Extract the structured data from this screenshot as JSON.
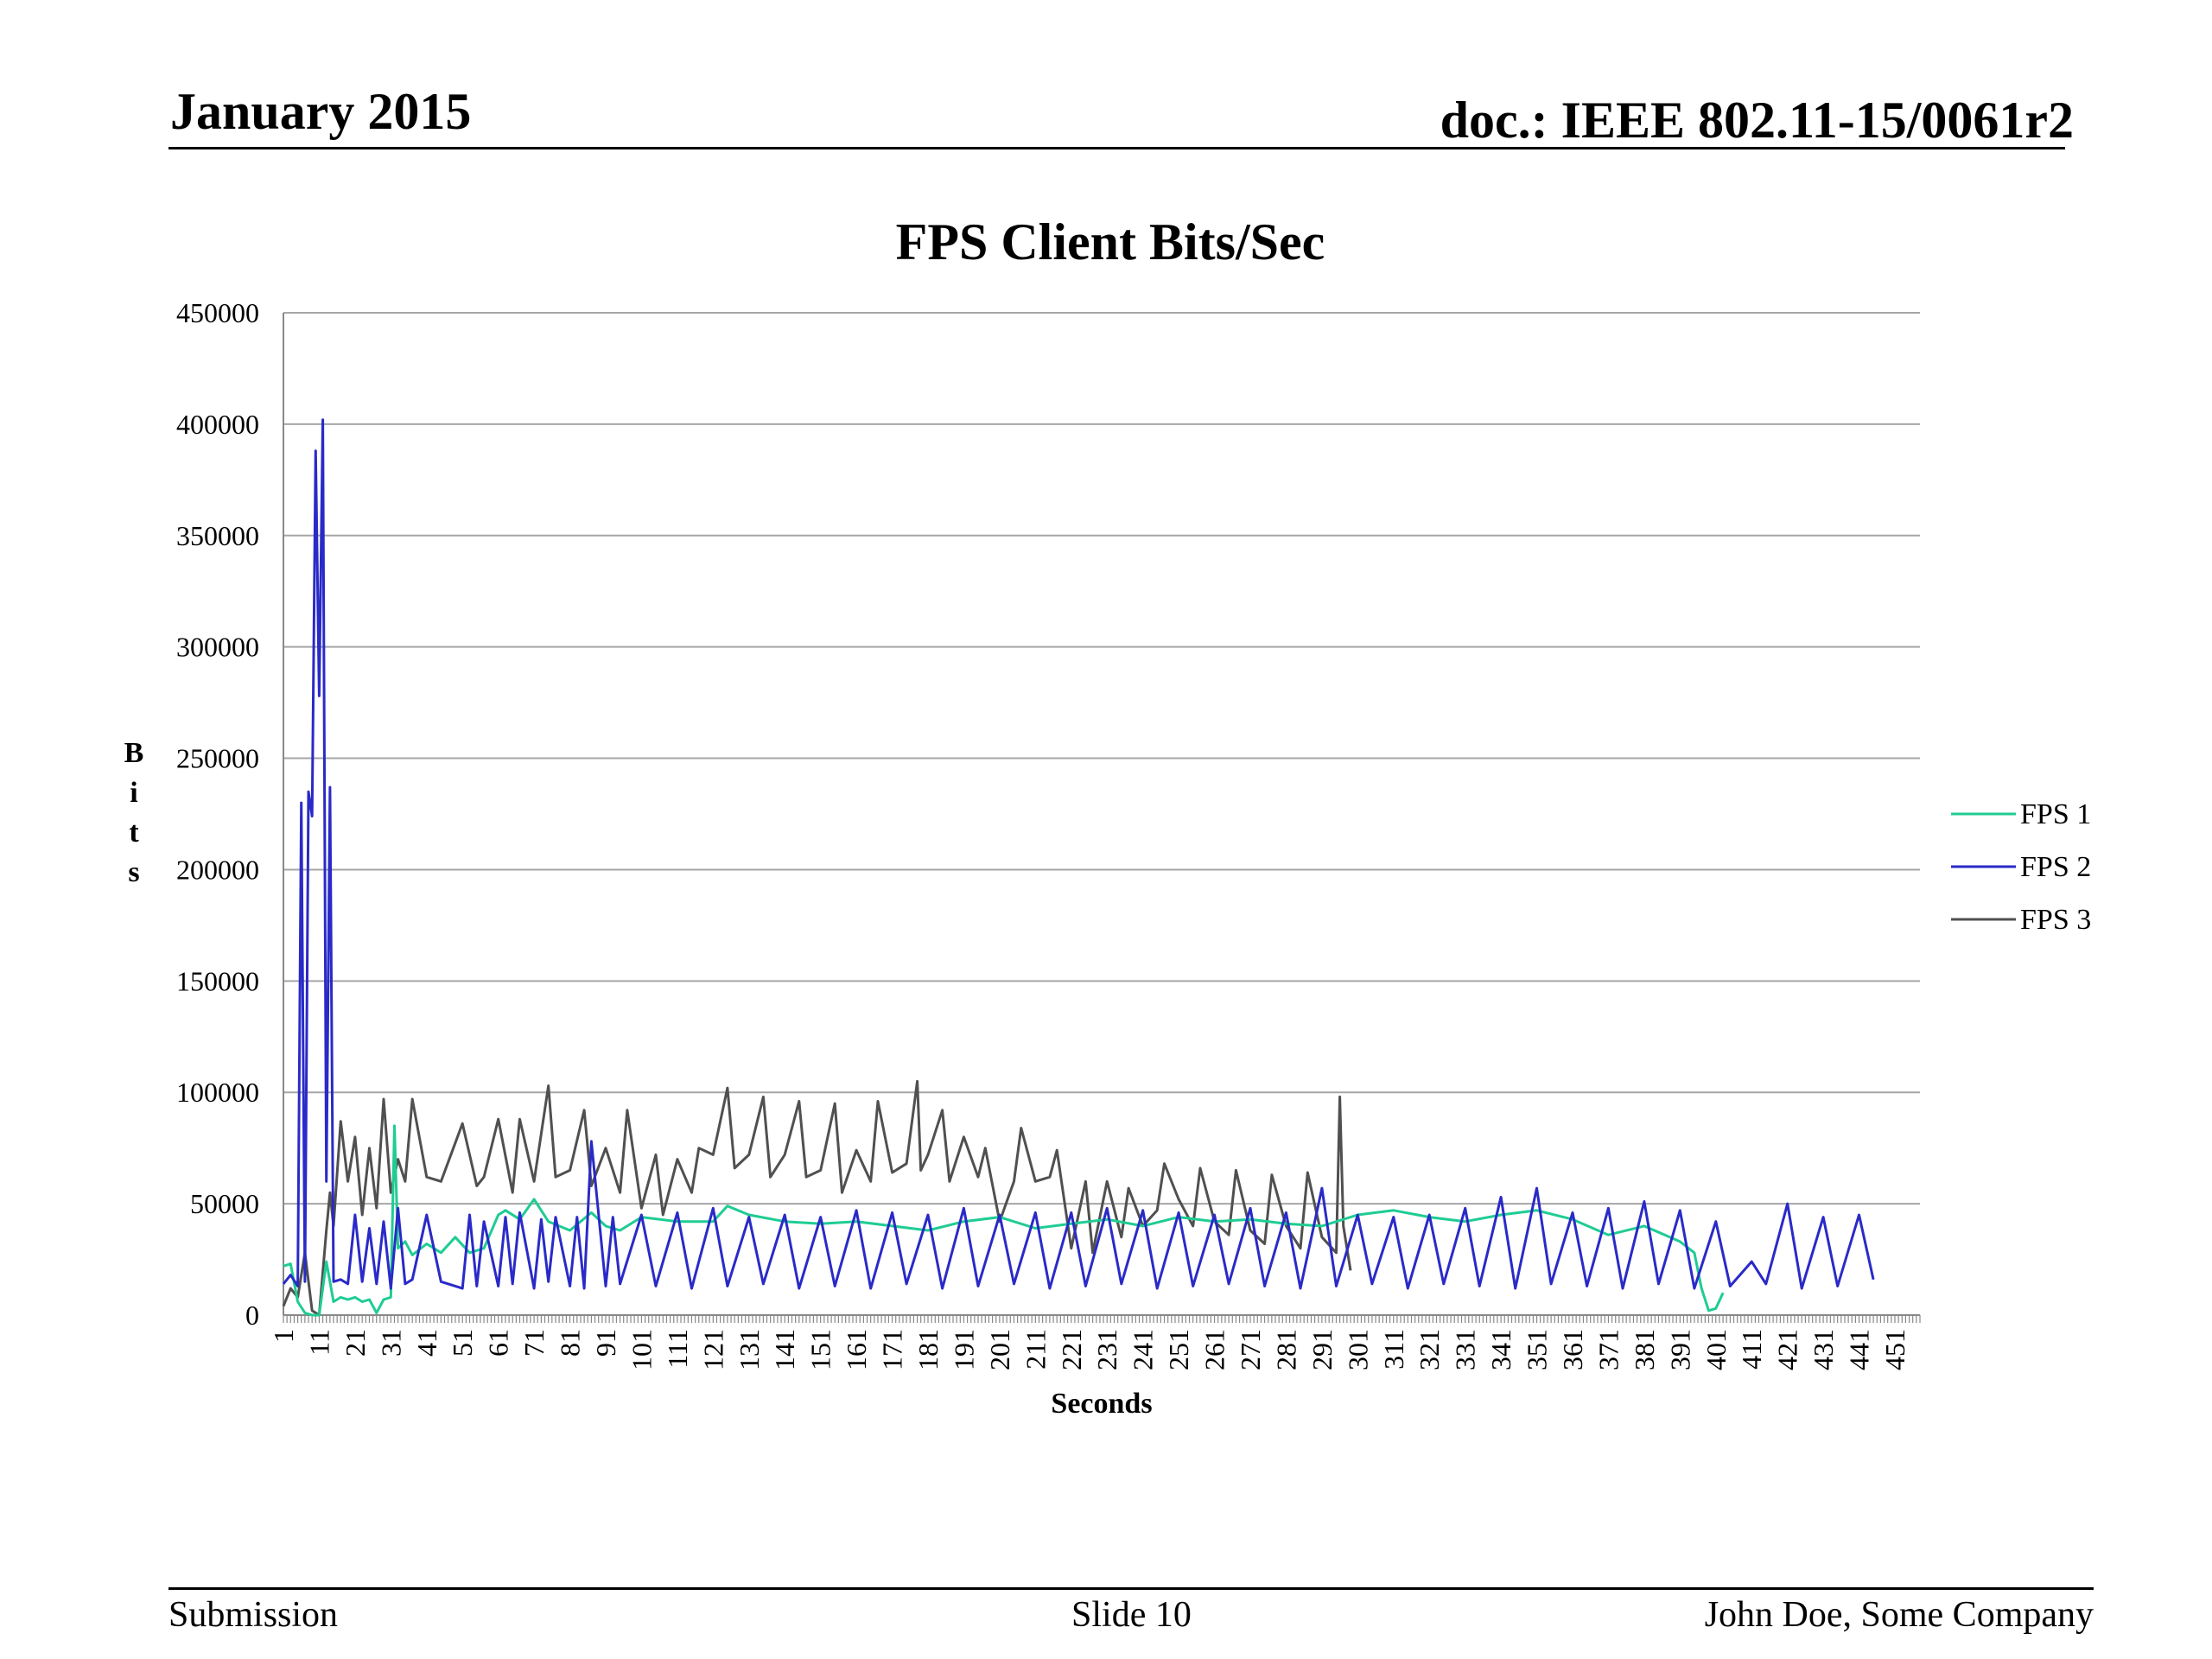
{
  "slide": {
    "header_left": "January 2015",
    "header_right": "doc.: IEEE 802.11-15/0061r2",
    "footer_left": "Submission",
    "footer_center": "Slide 10",
    "footer_right": "John Doe, Some Company"
  },
  "colors": {
    "FPS 1": "#1fcc94",
    "FPS 2": "#2a2ac8",
    "FPS 3": "#505050",
    "grid": "#a6a6a6"
  },
  "chart_data": {
    "type": "line",
    "title": "FPS Client Bits/Sec",
    "xlabel": "Seconds",
    "ylabel": "Bits",
    "ylim": [
      0,
      450000
    ],
    "yticks": [
      0,
      50000,
      100000,
      150000,
      200000,
      250000,
      300000,
      350000,
      400000,
      450000
    ],
    "x_tick_labels": [
      "1",
      "11",
      "21",
      "31",
      "41",
      "51",
      "61",
      "71",
      "81",
      "91",
      "101",
      "111",
      "121",
      "131",
      "141",
      "151",
      "161",
      "171",
      "181",
      "191",
      "201",
      "211",
      "221",
      "231",
      "241",
      "251",
      "261",
      "271",
      "281",
      "291",
      "301",
      "311",
      "321",
      "331",
      "341",
      "351",
      "361",
      "371",
      "381",
      "391",
      "401",
      "411",
      "421",
      "431",
      "441",
      "451"
    ],
    "xlim": [
      1,
      458
    ],
    "grid": "horizontal",
    "legend_position": "right",
    "series": [
      {
        "name": "FPS 1",
        "color": "#1fcc94",
        "x": [
          1,
          3,
          5,
          7,
          9,
          11,
          13,
          15,
          17,
          19,
          21,
          23,
          25,
          27,
          29,
          31,
          32,
          33,
          35,
          37,
          41,
          45,
          49,
          53,
          57,
          61,
          63,
          67,
          71,
          75,
          81,
          87,
          91,
          95,
          101,
          111,
          121,
          125,
          131,
          141,
          151,
          161,
          171,
          181,
          191,
          201,
          211,
          221,
          231,
          241,
          251,
          261,
          271,
          281,
          291,
          301,
          311,
          321,
          331,
          341,
          351,
          361,
          371,
          381,
          391,
          395,
          397,
          399,
          401,
          403
        ],
        "values": [
          22000,
          23000,
          6000,
          1000,
          0,
          0,
          24000,
          6000,
          8000,
          7000,
          8000,
          6000,
          7000,
          1000,
          7000,
          8000,
          85000,
          30000,
          33000,
          27000,
          32000,
          28000,
          35000,
          28000,
          30000,
          45000,
          47000,
          43000,
          52000,
          42000,
          38000,
          46000,
          40000,
          38000,
          44000,
          42000,
          42000,
          49000,
          45000,
          42000,
          41000,
          42000,
          40000,
          38000,
          42000,
          44000,
          39000,
          41000,
          43000,
          40000,
          44000,
          42000,
          43000,
          41000,
          40000,
          45000,
          47000,
          44000,
          42000,
          45000,
          47000,
          43000,
          36000,
          40000,
          33000,
          28000,
          12000,
          2000,
          3000,
          10000
        ]
      },
      {
        "name": "FPS 2",
        "color": "#2a2ac8",
        "x": [
          1,
          3,
          5,
          6,
          7,
          8,
          9,
          10,
          11,
          12,
          13,
          14,
          15,
          17,
          19,
          21,
          23,
          25,
          27,
          29,
          31,
          33,
          35,
          37,
          41,
          45,
          51,
          53,
          55,
          57,
          61,
          63,
          65,
          67,
          71,
          73,
          75,
          77,
          81,
          83,
          85,
          87,
          91,
          93,
          95,
          101,
          105,
          111,
          115,
          121,
          125,
          131,
          135,
          141,
          145,
          151,
          155,
          161,
          165,
          171,
          175,
          181,
          185,
          191,
          195,
          201,
          205,
          211,
          215,
          221,
          225,
          231,
          235,
          241,
          245,
          251,
          255,
          261,
          265,
          271,
          275,
          281,
          285,
          291,
          295,
          301,
          305,
          311,
          315,
          321,
          325,
          331,
          335,
          341,
          345,
          351,
          355,
          361,
          365,
          371,
          375,
          381,
          385,
          391,
          395,
          401,
          405,
          411,
          415,
          421,
          425,
          431,
          435,
          441,
          445
        ],
        "values": [
          14000,
          18000,
          13000,
          230000,
          15000,
          235000,
          224000,
          388000,
          278000,
          402000,
          60000,
          237000,
          15000,
          16000,
          14000,
          45000,
          15000,
          39000,
          14000,
          42000,
          12000,
          48000,
          14000,
          16000,
          45000,
          15000,
          12000,
          45000,
          13000,
          42000,
          13000,
          44000,
          14000,
          46000,
          12000,
          43000,
          15000,
          44000,
          13000,
          44000,
          12000,
          78000,
          13000,
          44000,
          14000,
          45000,
          13000,
          46000,
          12000,
          48000,
          13000,
          44000,
          14000,
          45000,
          12000,
          44000,
          13000,
          47000,
          12000,
          46000,
          14000,
          45000,
          12000,
          48000,
          13000,
          45000,
          14000,
          46000,
          12000,
          46000,
          13000,
          48000,
          14000,
          47000,
          12000,
          46000,
          13000,
          45000,
          14000,
          48000,
          13000,
          46000,
          12000,
          57000,
          13000,
          45000,
          14000,
          44000,
          12000,
          45000,
          14000,
          48000,
          13000,
          53000,
          12000,
          57000,
          14000,
          46000,
          13000,
          48000,
          12000,
          51000,
          14000,
          47000,
          12000,
          42000,
          13000,
          24000,
          14000,
          50000,
          12000,
          44000,
          13000,
          45000,
          16000
        ]
      },
      {
        "name": "FPS 3",
        "color": "#505050",
        "x": [
          1,
          3,
          5,
          7,
          9,
          10,
          11,
          13,
          14,
          15,
          17,
          19,
          21,
          23,
          25,
          27,
          29,
          31,
          33,
          35,
          37,
          41,
          45,
          51,
          55,
          57,
          61,
          65,
          67,
          71,
          75,
          77,
          81,
          85,
          87,
          91,
          95,
          97,
          101,
          105,
          107,
          111,
          115,
          117,
          121,
          125,
          127,
          131,
          135,
          137,
          141,
          145,
          147,
          151,
          155,
          157,
          161,
          165,
          167,
          171,
          175,
          178,
          179,
          181,
          185,
          187,
          191,
          195,
          197,
          201,
          205,
          207,
          211,
          215,
          217,
          221,
          225,
          227,
          231,
          235,
          237,
          241,
          245,
          247,
          251,
          255,
          257,
          261,
          265,
          267,
          271,
          275,
          277,
          281,
          285,
          287,
          291,
          295,
          296,
          297,
          299
        ],
        "values": [
          4000,
          12000,
          8000,
          28000,
          2000,
          1000,
          0,
          38000,
          55000,
          40000,
          87000,
          60000,
          80000,
          45000,
          75000,
          48000,
          97000,
          55000,
          70000,
          60000,
          97000,
          62000,
          60000,
          86000,
          58000,
          62000,
          88000,
          55000,
          88000,
          60000,
          103000,
          62000,
          65000,
          92000,
          58000,
          75000,
          55000,
          92000,
          48000,
          72000,
          45000,
          70000,
          55000,
          75000,
          72000,
          102000,
          66000,
          72000,
          98000,
          62000,
          72000,
          96000,
          62000,
          65000,
          95000,
          55000,
          74000,
          60000,
          96000,
          64000,
          68000,
          105000,
          65000,
          72000,
          92000,
          60000,
          80000,
          62000,
          75000,
          42000,
          60000,
          84000,
          60000,
          62000,
          74000,
          30000,
          60000,
          28000,
          60000,
          35000,
          57000,
          40000,
          47000,
          68000,
          52000,
          40000,
          66000,
          42000,
          36000,
          65000,
          38000,
          32000,
          63000,
          40000,
          30000,
          64000,
          35000,
          28000,
          98000,
          40000,
          20000
        ]
      }
    ]
  }
}
